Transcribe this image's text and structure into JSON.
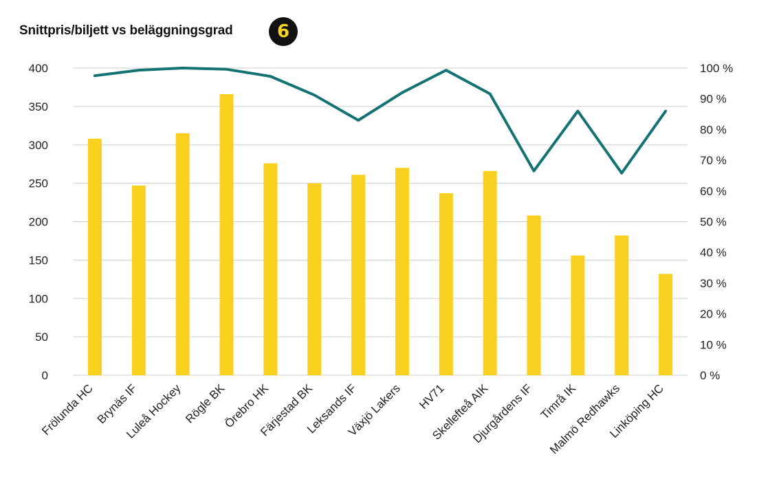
{
  "header": {
    "title": "Snittpris/biljett vs beläggningsgrad",
    "badge": "6"
  },
  "colors": {
    "bar": "#f9d01f",
    "line": "#137372",
    "grid": "#cfcfcf",
    "badge_bg": "#111111",
    "badge_text": "#f7d21e"
  },
  "chart_data": {
    "type": "bar",
    "categories": [
      "Frölunda HC",
      "Brynäs IF",
      "Luleå Hockey",
      "Rögle BK",
      "Örebro HK",
      "Färjestad BK",
      "Leksands IF",
      "Växjö Lakers",
      "HV71",
      "Skellefteå AIK",
      "Djurgårdens IF",
      "Timrå IK",
      "Malmö Redhawks",
      "Linköping HC"
    ],
    "series": [
      {
        "type": "bar",
        "axis": "left",
        "values": [
          308,
          247,
          315,
          366,
          276,
          250,
          261,
          270,
          237,
          266,
          208,
          156,
          182,
          132
        ]
      },
      {
        "type": "line",
        "axis": "right",
        "values": [
          97.5,
          99.3,
          100,
          99.6,
          97.3,
          91.2,
          83,
          92,
          99.3,
          91.6,
          66.5,
          86,
          65.8,
          86
        ]
      }
    ],
    "y_left": {
      "ylim": [
        0,
        400
      ],
      "ticks": [
        "0",
        "50",
        "100",
        "150",
        "200",
        "250",
        "300",
        "350",
        "400"
      ]
    },
    "y_right": {
      "ylim": [
        0,
        100
      ],
      "ticks": [
        "0 %",
        "10 %",
        "20 %",
        "30 %",
        "40 %",
        "50 %",
        "60 %",
        "70 %",
        "80 %",
        "90 %",
        "100 %"
      ]
    },
    "grid": true,
    "legend": "none"
  }
}
